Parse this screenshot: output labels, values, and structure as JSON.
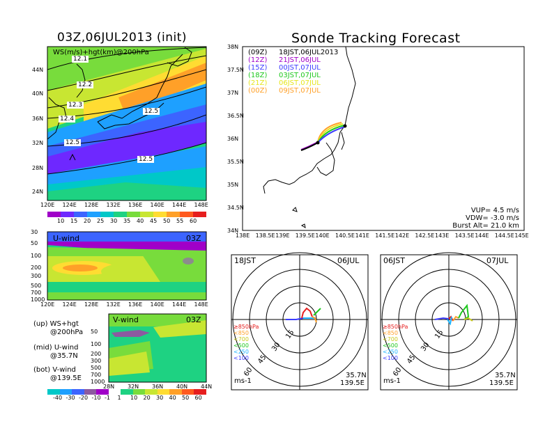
{
  "left_title": "03Z,06JUL2013 (init)",
  "right_title": "Sonde Tracking Forecast",
  "map_panel": {
    "label": "WS(m/s)+hgt(km)@200hPa",
    "lat_ticks": [
      "44N",
      "40N",
      "36N",
      "32N",
      "28N",
      "24N"
    ],
    "lon_ticks": [
      "120E",
      "124E",
      "128E",
      "132E",
      "136E",
      "140E",
      "144E",
      "148E"
    ],
    "contour_labels": [
      "12.1",
      "12.2",
      "12.3",
      "12.4",
      "12.5",
      "12.5",
      "12.5"
    ],
    "colorbar_ticks": [
      "10",
      "15",
      "20",
      "25",
      "30",
      "35",
      "40",
      "45",
      "50",
      "55",
      "60"
    ],
    "colorbar_colors": [
      "#a000c8",
      "#6e28ff",
      "#3c64ff",
      "#1ea0ff",
      "#00c8c8",
      "#1ed282",
      "#78dc3c",
      "#c8e632",
      "#ffdc32",
      "#ffa028",
      "#ff5a1e",
      "#e61e1e"
    ]
  },
  "u_panel": {
    "label": "U-wind",
    "time": "03Z",
    "y_ticks": [
      "30",
      "50",
      "100",
      "200",
      "300",
      "500",
      "700",
      "1000"
    ],
    "x_ticks": [
      "120E",
      "124E",
      "128E",
      "132E",
      "136E",
      "140E",
      "144E",
      "148E"
    ]
  },
  "v_panel": {
    "label": "V-wind",
    "time": "03Z",
    "y_ticks": [
      "50",
      "100",
      "200",
      "300",
      "500",
      "700",
      "1000"
    ],
    "x_ticks": [
      "28N",
      "32N",
      "36N",
      "40N",
      "44N"
    ]
  },
  "side_notes": [
    {
      "line1": "(up) WS+hgt",
      "line2": "@200hPa"
    },
    {
      "line1": "(mid) U-wind",
      "line2": "@35.7N"
    },
    {
      "line1": "(bot) V-wind",
      "line2": "@139.5E"
    }
  ],
  "bottom_colorbar_ticks": [
    "-40",
    "-30",
    "-20",
    "-10",
    "-1",
    "1",
    "10",
    "20",
    "30",
    "40",
    "50",
    "60"
  ],
  "track_panel": {
    "legend": [
      {
        "code": "(09Z)",
        "label": "18JST,06JUL2013",
        "color": "#000000"
      },
      {
        "code": "(12Z)",
        "label": "21JST,06JUL",
        "color": "#a000c8"
      },
      {
        "code": "(15Z)",
        "label": "00JST,07JUL",
        "color": "#3c3cff"
      },
      {
        "code": "(18Z)",
        "label": "03JST,07JUL",
        "color": "#1ec81e"
      },
      {
        "code": "(21Z)",
        "label": "06JST,07JUL",
        "color": "#e6e61e"
      },
      {
        "code": "(00Z)",
        "label": "09JST,07JUL",
        "color": "#ffa028"
      }
    ],
    "lat_ticks": [
      "38N",
      "37.5N",
      "37N",
      "36.5N",
      "36N",
      "35.5N",
      "35N",
      "34.5N",
      "34N"
    ],
    "lon_ticks": [
      "138E",
      "138.5E",
      "139E",
      "139.5E",
      "140E",
      "140.5E",
      "141E",
      "141.5E",
      "142E",
      "142.5E",
      "143E",
      "143.5E",
      "144E",
      "144.5E",
      "145E"
    ],
    "info": [
      "VUP= 4.5 m/s",
      "VDW= -3.0 m/s",
      "Burst Alt= 21.0 km"
    ]
  },
  "hodo_left": {
    "time": "18JST",
    "date": "06JUL",
    "lat": "35.7N",
    "lon": "139.5E",
    "units": "ms-1",
    "rings": [
      "15",
      "30",
      "45",
      "60"
    ],
    "levels": [
      {
        "text": "≥850hPa",
        "color": "#e61e1e"
      },
      {
        "text": "<850",
        "color": "#ffa028"
      },
      {
        "text": "<700",
        "color": "#c8c81e"
      },
      {
        "text": "<500",
        "color": "#1ec81e"
      },
      {
        "text": "<250",
        "color": "#1eb4ff"
      },
      {
        "text": "<100",
        "color": "#3c3cff"
      }
    ]
  },
  "hodo_right": {
    "time": "06JST",
    "date": "07JUL",
    "lat": "35.7N",
    "lon": "139.5E",
    "units": "ms-1",
    "rings": [
      "15",
      "30",
      "45",
      "60"
    ],
    "levels": [
      {
        "text": "≥850hPa",
        "color": "#e61e1e"
      },
      {
        "text": "<850",
        "color": "#ffa028"
      },
      {
        "text": "<700",
        "color": "#c8c81e"
      },
      {
        "text": "<500",
        "color": "#1ec81e"
      },
      {
        "text": "<250",
        "color": "#1eb4ff"
      },
      {
        "text": "<100",
        "color": "#3c3cff"
      }
    ]
  }
}
